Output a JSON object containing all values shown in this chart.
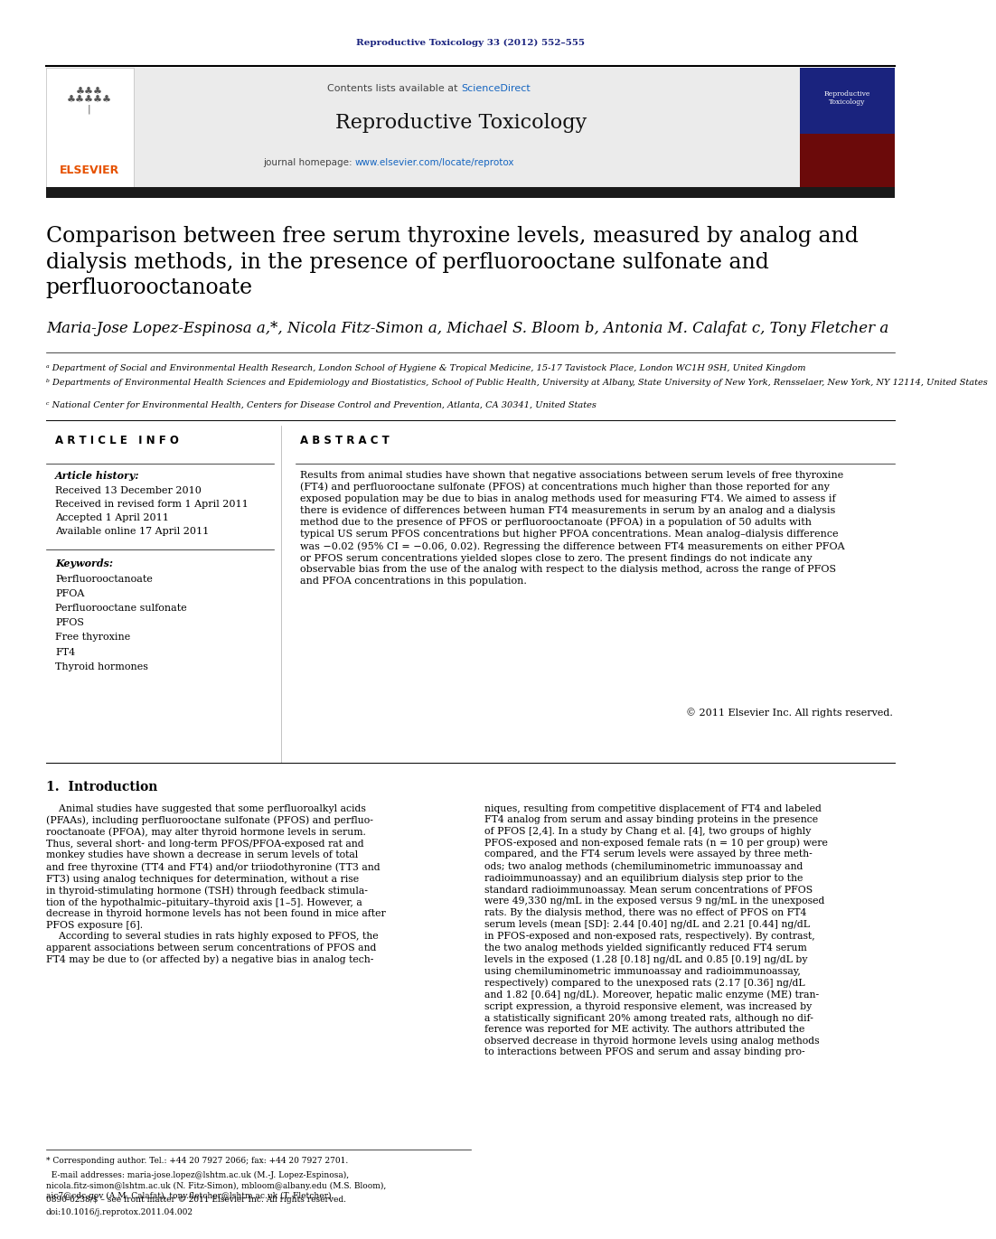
{
  "page_width": 10.21,
  "page_height": 13.51,
  "bg_color": "#ffffff",
  "journal_ref": "Reproductive Toxicology 33 (2012) 552–555",
  "journal_ref_color": "#1a237e",
  "contents_text": "Contents lists available at ",
  "sciencedirect_text": "ScienceDirect",
  "sciencedirect_color": "#1565c0",
  "journal_name": "Reproductive Toxicology",
  "journal_homepage_text": "journal homepage: ",
  "journal_url": "www.elsevier.com/locate/reprotox",
  "journal_url_color": "#1565c0",
  "article_title": "Comparison between free serum thyroxine levels, measured by analog and\ndialysis methods, in the presence of perfluorooctane sulfonate and\nperfluorooctanoate",
  "article_title_fontsize": 17,
  "article_title_color": "#000000",
  "authors_full": "Maria-Jose Lopez-Espinosa a,*, Nicola Fitz-Simon a, Michael S. Bloom b, Antonia M. Calafat c, Tony Fletcher a",
  "authors_fontsize": 12,
  "authors_color": "#000000",
  "affil_a": "ᵃ Department of Social and Environmental Health Research, London School of Hygiene & Tropical Medicine, 15-17 Tavistock Place, London WC1H 9SH, United Kingdom",
  "affil_b": "ᵇ Departments of Environmental Health Sciences and Epidemiology and Biostatistics, School of Public Health, University at Albany, State University of New York, Rensselaer, New York, NY 12114, United States",
  "affil_c": "ᶜ National Center for Environmental Health, Centers for Disease Control and Prevention, Atlanta, CA 30341, United States",
  "affil_fontsize": 7,
  "affil_color": "#000000",
  "article_info_title": "A R T I C L E   I N F O",
  "abstract_title": "A B S T R A C T",
  "section_title_fontsize": 8.5,
  "article_history_label": "Article history:",
  "received1": "Received 13 December 2010",
  "received2": "Received in revised form 1 April 2011",
  "accepted": "Accepted 1 April 2011",
  "available": "Available online 17 April 2011",
  "history_fontsize": 8,
  "keywords_label": "Keywords:",
  "keywords": [
    "Perfluorooctanoate",
    "PFOA",
    "Perfluorooctane sulfonate",
    "PFOS",
    "Free thyroxine",
    "FT4",
    "Thyroid hormones"
  ],
  "keywords_fontsize": 8,
  "abstract_text": "Results from animal studies have shown that negative associations between serum levels of free thyroxine\n(FT4) and perfluorooctane sulfonate (PFOS) at concentrations much higher than those reported for any\nexposed population may be due to bias in analog methods used for measuring FT4. We aimed to assess if\nthere is evidence of differences between human FT4 measurements in serum by an analog and a dialysis\nmethod due to the presence of PFOS or perfluorooctanoate (PFOA) in a population of 50 adults with\ntypical US serum PFOS concentrations but higher PFOA concentrations. Mean analog–dialysis difference\nwas −0.02 (95% CI = −0.06, 0.02). Regressing the difference between FT4 measurements on either PFOA\nor PFOS serum concentrations yielded slopes close to zero. The present findings do not indicate any\nobservable bias from the use of the analog with respect to the dialysis method, across the range of PFOS\nand PFOA concentrations in this population.",
  "abstract_fontsize": 8,
  "copyright_text": "© 2011 Elsevier Inc. All rights reserved.",
  "copyright_fontsize": 8,
  "intro_title": "1.  Introduction",
  "intro_title_fontsize": 10,
  "intro_col1": "    Animal studies have suggested that some perfluoroalkyl acids\n(PFAAs), including perfluorooctane sulfonate (PFOS) and perfluo-\nrooctanoate (PFOA), may alter thyroid hormone levels in serum.\nThus, several short- and long-term PFOS/PFOA-exposed rat and\nmonkey studies have shown a decrease in serum levels of total\nand free thyroxine (TT4 and FT4) and/or triiodothyronine (TT3 and\nFT3) using analog techniques for determination, without a rise\nin thyroid-stimulating hormone (TSH) through feedback stimula-\ntion of the hypothalmic–pituitary–thyroid axis [1–5]. However, a\ndecrease in thyroid hormone levels has not been found in mice after\nPFOS exposure [6].\n    According to several studies in rats highly exposed to PFOS, the\napparent associations between serum concentrations of PFOS and\nFT4 may be due to (or affected by) a negative bias in analog tech-",
  "intro_col2": "niques, resulting from competitive displacement of FT4 and labeled\nFT4 analog from serum and assay binding proteins in the presence\nof PFOS [2,4]. In a study by Chang et al. [4], two groups of highly\nPFOS-exposed and non-exposed female rats (n = 10 per group) were\ncompared, and the FT4 serum levels were assayed by three meth-\nods; two analog methods (chemiluminometric immunoassay and\nradioimmunoassay) and an equilibrium dialysis step prior to the\nstandard radioimmunoassay. Mean serum concentrations of PFOS\nwere 49,330 ng/mL in the exposed versus 9 ng/mL in the unexposed\nrats. By the dialysis method, there was no effect of PFOS on FT4\nserum levels (mean [SD]: 2.44 [0.40] ng/dL and 2.21 [0.44] ng/dL\nin PFOS-exposed and non-exposed rats, respectively). By contrast,\nthe two analog methods yielded significantly reduced FT4 serum\nlevels in the exposed (1.28 [0.18] ng/dL and 0.85 [0.19] ng/dL by\nusing chemiluminometric immunoassay and radioimmunoassay,\nrespectively) compared to the unexposed rats (2.17 [0.36] ng/dL\nand 1.82 [0.64] ng/dL). Moreover, hepatic malic enzyme (ME) tran-\nscript expression, a thyroid responsive element, was increased by\na statistically significant 20% among treated rats, although no dif-\nference was reported for ME activity. The authors attributed the\nobserved decrease in thyroid hormone levels using analog methods\nto interactions between PFOS and serum and assay binding pro-",
  "body_fontsize": 7.8,
  "footnote_star": "* Corresponding author. Tel.: +44 20 7927 2066; fax: +44 20 7927 2701.",
  "footnote_email": "  E-mail addresses: maria-jose.lopez@lshtm.ac.uk (M.-J. Lopez-Espinosa),\nnicola.fitz-simon@lshtm.ac.uk (N. Fitz-Simon), mbloom@albany.edu (M.S. Bloom),\naic7@cdc.gov (A.M. Calafat), tony.fletcher@lshtm.ac.uk (T. Fletcher).",
  "footnote_issn": "0890-6238/$ – see front matter © 2011 Elsevier Inc. All rights reserved.",
  "footnote_doi": "doi:10.1016/j.reprotox.2011.04.002",
  "footnote_fontsize": 6.5,
  "header_bar_color": "#1a1a1a",
  "elsevier_color": "#e65100",
  "elsevier_text": "ELSEVIER"
}
